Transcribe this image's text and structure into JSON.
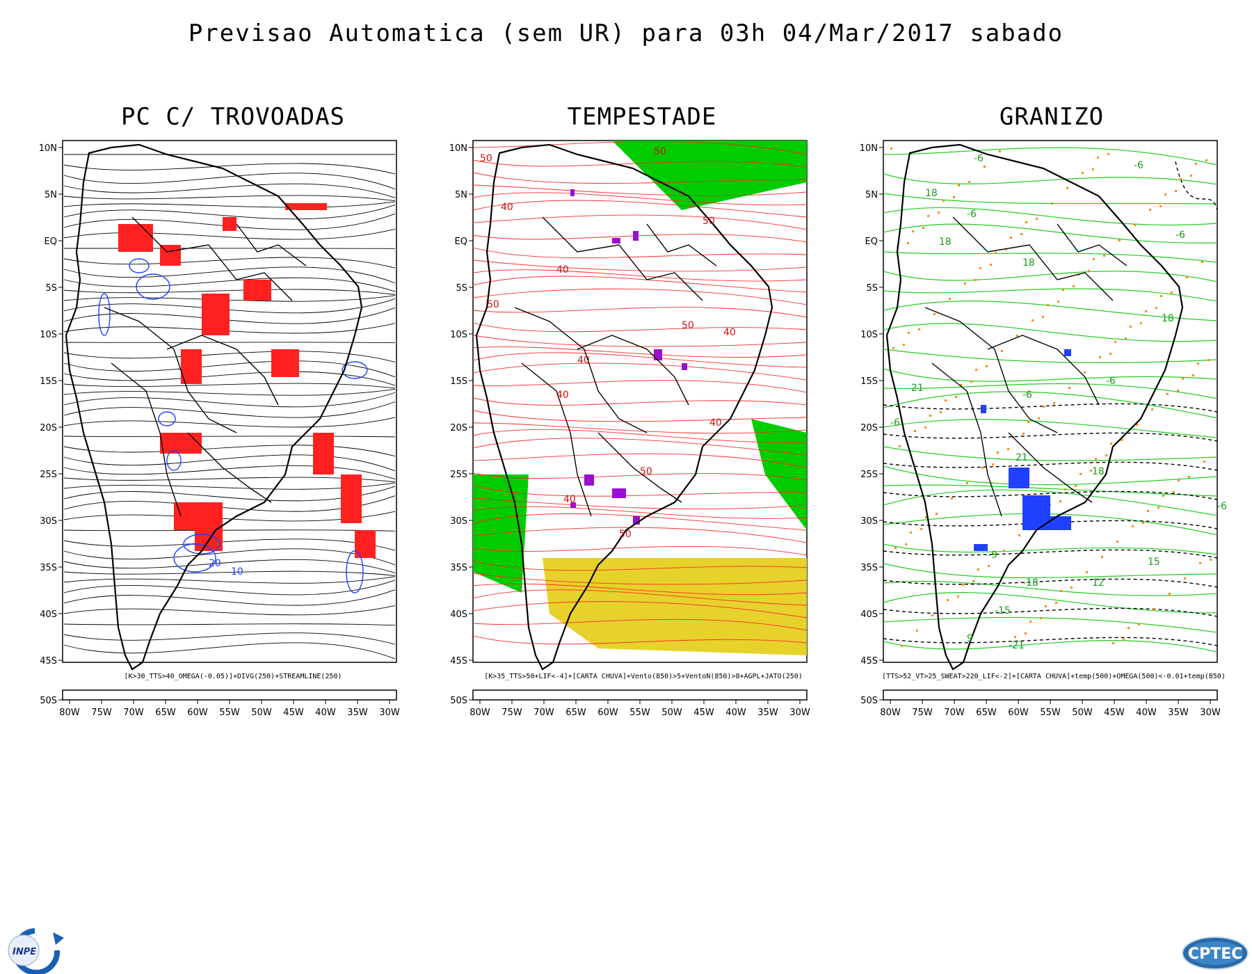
{
  "title": "Previsao Automatica (sem UR) para 03h 04/Mar/2017 sabado",
  "axis": {
    "lat_labels": [
      "10N",
      "5N",
      "EQ",
      "5S",
      "10S",
      "15S",
      "20S",
      "25S",
      "30S",
      "35S",
      "40S",
      "45S",
      "50S"
    ],
    "lon_labels": [
      "80W",
      "75W",
      "70W",
      "65W",
      "60W",
      "55W",
      "50W",
      "45W",
      "40W",
      "35W",
      "30W"
    ]
  },
  "panels": [
    {
      "title": "PC C/ TROVOADAS",
      "caption": "[K>30_TTS>40_OMEGA(-0.05)]+DIVG(250)+STREAMLINE(250)",
      "contour_labels": [
        "20",
        "10"
      ]
    },
    {
      "title": "TEMPESTADE",
      "caption": "[K>35_TTS>50+LIF<-4]+[CARTA CHUVA]+Vento(850)>5+VentoN(850)>8+AGPL+JATO(250)",
      "contour_labels": [
        "50",
        "50",
        "40",
        "40",
        "50",
        "40",
        "50",
        "40",
        "50",
        "40",
        "50",
        "40",
        "50",
        "40"
      ]
    },
    {
      "title": "GRANIZO",
      "caption": "[TTS>52_VT>25_SWEAT>220_LIF<-2]+[CARTA CHUVA]+temp(500)+OMEGA(500)<-0.01+temp(850)",
      "contour_labels": [
        "-6",
        "-6",
        "18",
        "18",
        "-6",
        "18",
        "-6",
        "18",
        "21",
        "-6",
        "-6",
        "21",
        "18",
        "-15",
        "-9",
        "-21",
        "-6",
        "12",
        "15",
        "-18",
        "-6",
        "9"
      ]
    }
  ],
  "colors": {
    "streamline": "#000000",
    "divergence": "#1f3fff",
    "thunder": "#ff2020",
    "storm_wind": "#ff2a2a",
    "jet": "#00cc00",
    "agpl": "#e6d22a",
    "storm_cells": "#9a10d0",
    "temp500": "#000000",
    "temp850": "#22cc22",
    "omega": "#ff8800",
    "hail": "#2040ff"
  },
  "logos": {
    "left": "INPE",
    "right": "CPTEC"
  }
}
